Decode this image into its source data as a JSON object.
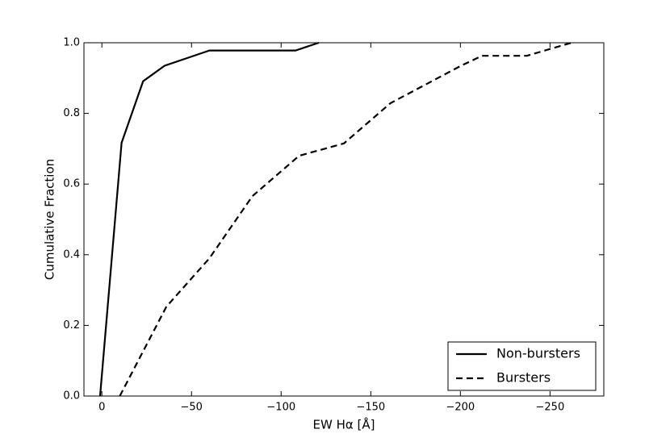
{
  "chart_data": {
    "type": "line",
    "x_label": "EW Hα [Å]",
    "y_label": "Cumulative Fraction",
    "xlim": [
      10,
      -280
    ],
    "ylim": [
      0,
      1
    ],
    "xticks": [
      {
        "value": 0,
        "label": "0"
      },
      {
        "value": -50,
        "label": "−50"
      },
      {
        "value": -100,
        "label": "−100"
      },
      {
        "value": -150,
        "label": "−150"
      },
      {
        "value": -200,
        "label": "−200"
      },
      {
        "value": -250,
        "label": "−250"
      }
    ],
    "yticks": [
      {
        "value": 0,
        "label": "0.0"
      },
      0.2,
      0.4,
      0.6,
      0.8,
      {
        "value": 1,
        "label": "1.0"
      }
    ],
    "legend": "lower right",
    "series": [
      {
        "name": "Non-bursters",
        "color": "#000000",
        "linestyle": "solid",
        "x": [
          1,
          -11,
          -23,
          -35,
          -60,
          -108,
          -121
        ],
        "values": [
          0,
          0.717,
          0.891,
          0.935,
          0.978,
          0.978,
          1.0
        ]
      },
      {
        "name": "Bursters",
        "color": "#000000",
        "linestyle": "dashed",
        "x": [
          -10,
          -36,
          -60,
          -84,
          -110,
          -135,
          -161,
          -200,
          -212,
          -237,
          -262
        ],
        "values": [
          0,
          0.253,
          0.39,
          0.566,
          0.68,
          0.715,
          0.829,
          0.934,
          0.963,
          0.963,
          1.0
        ]
      }
    ]
  }
}
